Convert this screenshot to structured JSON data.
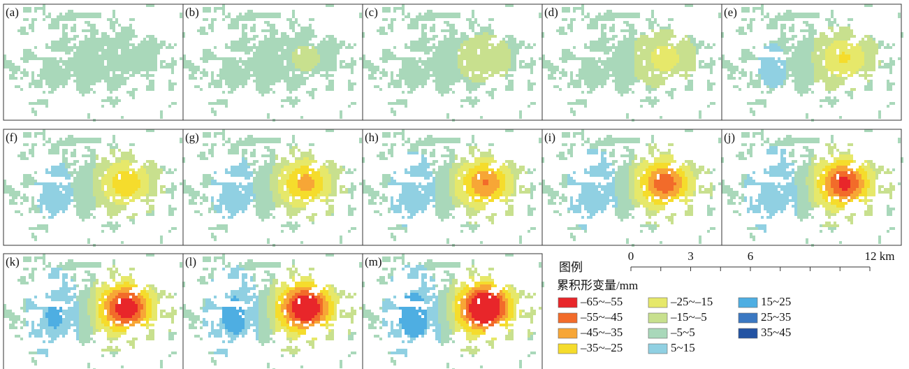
{
  "panels": [
    "(a)",
    "(b)",
    "(c)",
    "(d)",
    "(e)",
    "(f)",
    "(g)",
    "(h)",
    "(i)",
    "(j)",
    "(k)",
    "(l)",
    "(m)"
  ],
  "legend": {
    "title": "图例",
    "subtitle": "累积形变量/mm",
    "items": [
      {
        "label": "–65~–55",
        "color": "#e8262a"
      },
      {
        "label": "–55~–45",
        "color": "#f26b2a"
      },
      {
        "label": "–45~–35",
        "color": "#f7a636"
      },
      {
        "label": "–35~–25",
        "color": "#f5dc2c"
      },
      {
        "label": "–25~–15",
        "color": "#e6e86a"
      },
      {
        "label": "–15~–5",
        "color": "#c8e08e"
      },
      {
        "label": "–5~5",
        "color": "#a9d8ba"
      },
      {
        "label": "5~15",
        "color": "#90d0e2"
      },
      {
        "label": "15~25",
        "color": "#4eaee2"
      },
      {
        "label": "25~35",
        "color": "#3b78c2"
      },
      {
        "label": "35~45",
        "color": "#2353a3"
      }
    ]
  },
  "scale_bar": {
    "labels": [
      "0",
      "3",
      "6",
      "12 km"
    ]
  }
}
